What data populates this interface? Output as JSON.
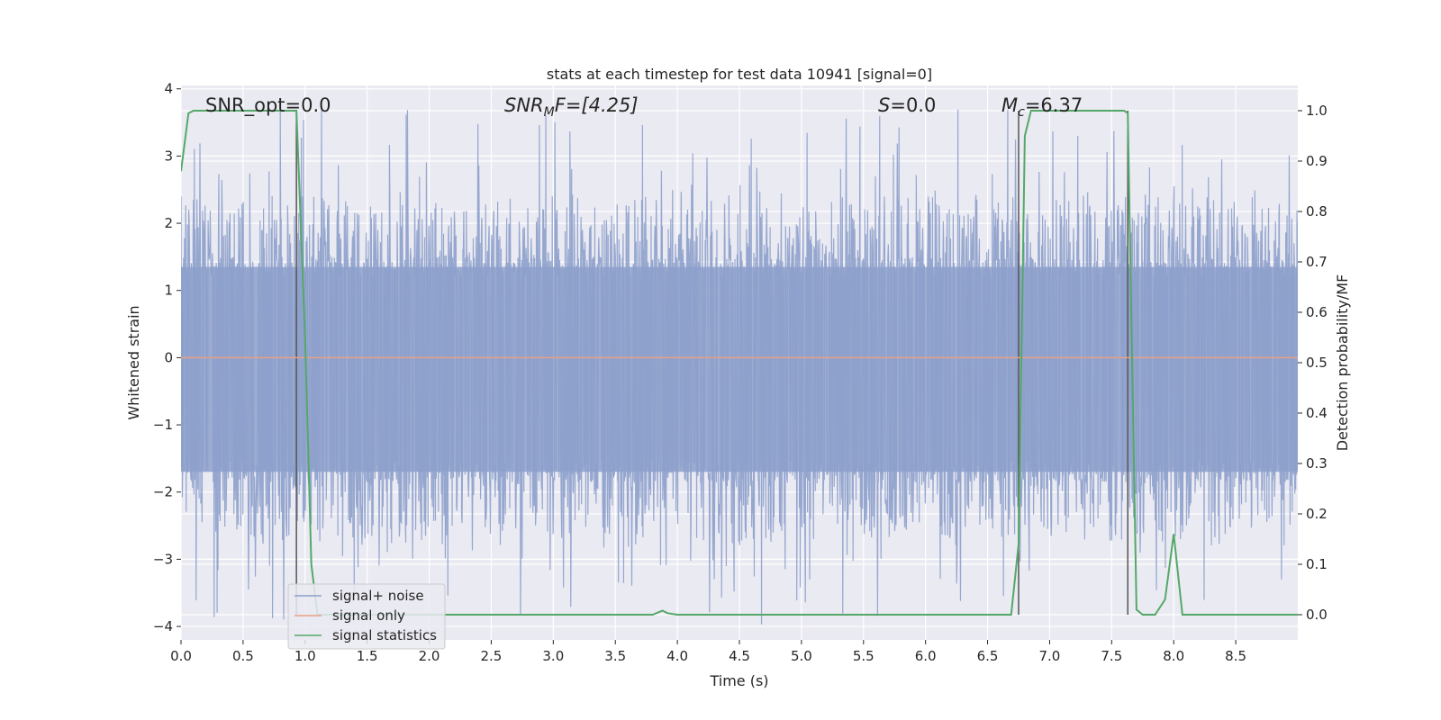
{
  "chart_data": {
    "type": "line",
    "title": "stats at each timestep for test data 10941 [signal=0]",
    "xlabel": "Time (s)",
    "ylabel": "Whitened strain",
    "y2label": "Detection probability/MF",
    "xlim": [
      0.0,
      9.0
    ],
    "ylim": [
      -4.2,
      4.05
    ],
    "y2lim": [
      -0.05,
      1.05
    ],
    "xticks": [
      "0.0",
      "0.5",
      "1.0",
      "1.5",
      "2.0",
      "2.5",
      "3.0",
      "3.5",
      "4.0",
      "4.5",
      "5.0",
      "5.5",
      "6.0",
      "6.5",
      "7.0",
      "7.5",
      "8.0",
      "8.5"
    ],
    "xtick_values": [
      0.0,
      0.5,
      1.0,
      1.5,
      2.0,
      2.5,
      3.0,
      3.5,
      4.0,
      4.5,
      5.0,
      5.5,
      6.0,
      6.5,
      7.0,
      7.5,
      8.0,
      8.5
    ],
    "yticks": [
      "4",
      "3",
      "2",
      "1",
      "0",
      "−1",
      "−2",
      "−3",
      "−4"
    ],
    "ytick_values": [
      4,
      3,
      2,
      1,
      0,
      -1,
      -2,
      -3,
      -4
    ],
    "y2ticks": [
      "1.0",
      "0.9",
      "0.8",
      "0.7",
      "0.6",
      "0.5",
      "0.4",
      "0.3",
      "0.2",
      "0.1",
      "0.0"
    ],
    "y2tick_values": [
      1.0,
      0.9,
      0.8,
      0.7,
      0.6,
      0.5,
      0.4,
      0.3,
      0.2,
      0.1,
      0.0
    ],
    "grid": true,
    "legend_placement": "lower-left",
    "annotations": {
      "snr_opt": "SNR_opt=0.0",
      "snr_mf_main": "SNR",
      "snr_mf_sub": "M",
      "snr_mf_rest": "F=[4.25]",
      "s_main": "S",
      "s_rest": "=0.0",
      "mc_main": "M",
      "mc_sub": "c",
      "mc_rest": "=6.37"
    },
    "series": [
      {
        "name": "signal+ noise",
        "axis": "left",
        "color": "#8da0cb",
        "style": "noise",
        "typical_range": [
          -1.7,
          1.35
        ],
        "peak_range": [
          -4.0,
          3.7
        ]
      },
      {
        "name": "signal only",
        "axis": "left",
        "color": "#e8a084",
        "x": [
          0.0,
          9.0
        ],
        "y": [
          0.0,
          0.0
        ]
      },
      {
        "name": "signal statistics",
        "axis": "right",
        "color": "#55a868",
        "x": [
          0.0,
          0.06,
          0.1,
          0.3,
          0.5,
          0.7,
          0.9,
          0.93,
          1.0,
          1.05,
          1.1,
          1.2,
          1.5,
          2.0,
          2.5,
          3.0,
          3.5,
          3.8,
          3.85,
          3.88,
          3.92,
          4.0,
          4.5,
          5.0,
          5.5,
          6.0,
          6.5,
          6.69,
          6.75,
          6.8,
          6.85,
          7.0,
          7.5,
          7.6,
          7.63,
          7.7,
          7.75,
          7.85,
          7.93,
          8.0,
          8.07,
          8.2,
          8.5,
          9.0
        ],
        "y": [
          0.88,
          0.995,
          1.0,
          1.0,
          1.0,
          1.0,
          1.0,
          1.0,
          0.55,
          0.1,
          0.0,
          0.0,
          0.0,
          0.0,
          0.0,
          0.0,
          0.0,
          0.0,
          0.005,
          0.008,
          0.003,
          0.0,
          0.0,
          0.0,
          0.0,
          0.0,
          0.0,
          0.0,
          0.14,
          0.95,
          1.0,
          1.0,
          1.0,
          1.0,
          0.995,
          0.01,
          0.0,
          0.0,
          0.03,
          0.16,
          0.0,
          0.0,
          0.0,
          0.0
        ]
      }
    ],
    "vlines": [
      0.93,
      6.75,
      7.63
    ]
  }
}
